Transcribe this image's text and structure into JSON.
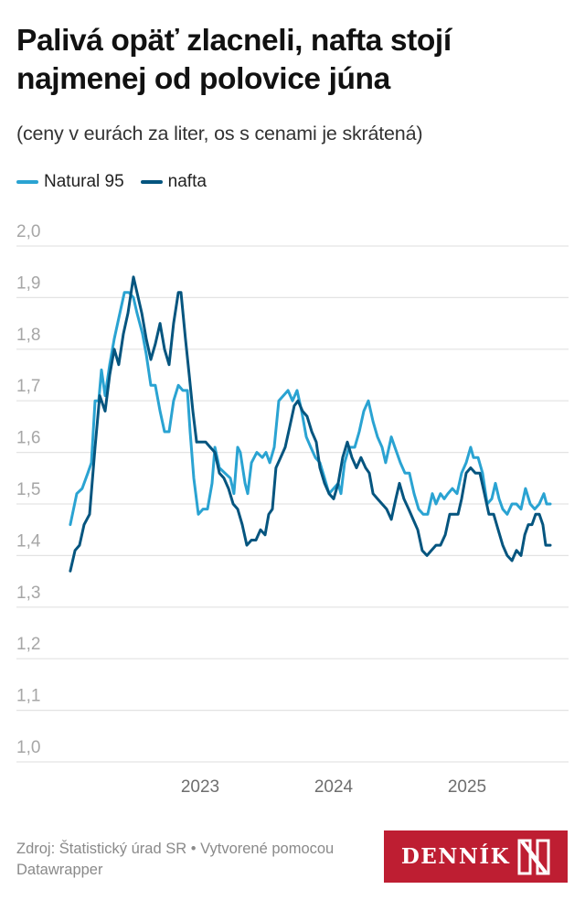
{
  "header": {
    "title": "Palivá opäť zlacneli, nafta stojí najmenej od polovice júna",
    "subtitle": "(ceny v eurách za liter, os s cenami je skrátená)"
  },
  "legend": [
    {
      "label": "Natural 95",
      "color": "#2aa3d2"
    },
    {
      "label": "nafta",
      "color": "#05557f"
    }
  ],
  "footer": {
    "source": "Zdroj: Štatistický úrad SR • Vytvorené pomocou Datawrapper",
    "logo_text": "DENNÍK",
    "logo_mark": "N",
    "logo_color": "#be1e32"
  },
  "chart_data": {
    "type": "line",
    "title": "Palivá opäť zlacneli, nafta stojí najmenej od polovice júna",
    "subtitle": "(ceny v eurách za liter, os s cenami je skrátená)",
    "xlabel": "",
    "ylabel": "",
    "x_unit": "decimal year",
    "xlim": [
      2022.0,
      2025.75
    ],
    "ylim": [
      1.0,
      2.0
    ],
    "yticks": [
      1.0,
      1.1,
      1.2,
      1.3,
      1.4,
      1.5,
      1.6,
      1.7,
      1.8,
      1.9,
      2.0
    ],
    "ytick_labels": [
      "1,0",
      "1,1",
      "1,2",
      "1,3",
      "1,4",
      "1,5",
      "1,6",
      "1,7",
      "1,8",
      "1,9",
      "2,0"
    ],
    "xticks": [
      2023,
      2024,
      2025
    ],
    "xtick_labels": [
      "2023",
      "2024",
      "2025"
    ],
    "grid": "horizontal",
    "legend_position": "top-left",
    "series": [
      {
        "name": "Natural 95",
        "color": "#2aa3d2",
        "points": [
          [
            2022.027,
            1.46
          ],
          [
            2022.075,
            1.52
          ],
          [
            2022.116,
            1.53
          ],
          [
            2022.158,
            1.56
          ],
          [
            2022.185,
            1.58
          ],
          [
            2022.212,
            1.7
          ],
          [
            2022.24,
            1.7
          ],
          [
            2022.26,
            1.76
          ],
          [
            2022.288,
            1.71
          ],
          [
            2022.322,
            1.77
          ],
          [
            2022.356,
            1.82
          ],
          [
            2022.39,
            1.86
          ],
          [
            2022.432,
            1.91
          ],
          [
            2022.466,
            1.91
          ],
          [
            2022.5,
            1.9
          ],
          [
            2022.527,
            1.87
          ],
          [
            2022.568,
            1.83
          ],
          [
            2022.596,
            1.79
          ],
          [
            2022.63,
            1.73
          ],
          [
            2022.664,
            1.73
          ],
          [
            2022.699,
            1.68
          ],
          [
            2022.733,
            1.64
          ],
          [
            2022.767,
            1.64
          ],
          [
            2022.801,
            1.7
          ],
          [
            2022.836,
            1.73
          ],
          [
            2022.87,
            1.72
          ],
          [
            2022.904,
            1.72
          ],
          [
            2022.925,
            1.64
          ],
          [
            2022.952,
            1.55
          ],
          [
            2022.986,
            1.48
          ],
          [
            2023.021,
            1.49
          ],
          [
            2023.055,
            1.49
          ],
          [
            2023.089,
            1.54
          ],
          [
            2023.11,
            1.61
          ],
          [
            2023.144,
            1.57
          ],
          [
            2023.185,
            1.56
          ],
          [
            2023.226,
            1.55
          ],
          [
            2023.253,
            1.52
          ],
          [
            2023.281,
            1.61
          ],
          [
            2023.301,
            1.6
          ],
          [
            2023.336,
            1.54
          ],
          [
            2023.356,
            1.52
          ],
          [
            2023.384,
            1.58
          ],
          [
            2023.425,
            1.6
          ],
          [
            2023.466,
            1.59
          ],
          [
            2023.493,
            1.6
          ],
          [
            2023.521,
            1.58
          ],
          [
            2023.555,
            1.61
          ],
          [
            2023.589,
            1.7
          ],
          [
            2023.623,
            1.71
          ],
          [
            2023.658,
            1.72
          ],
          [
            2023.692,
            1.7
          ],
          [
            2023.726,
            1.72
          ],
          [
            2023.76,
            1.68
          ],
          [
            2023.795,
            1.63
          ],
          [
            2023.829,
            1.61
          ],
          [
            2023.863,
            1.59
          ],
          [
            2023.897,
            1.58
          ],
          [
            2023.932,
            1.55
          ],
          [
            2023.966,
            1.52
          ],
          [
            2024.0,
            1.53
          ],
          [
            2024.034,
            1.54
          ],
          [
            2024.055,
            1.52
          ],
          [
            2024.082,
            1.58
          ],
          [
            2024.116,
            1.61
          ],
          [
            2024.158,
            1.61
          ],
          [
            2024.192,
            1.64
          ],
          [
            2024.226,
            1.68
          ],
          [
            2024.26,
            1.7
          ],
          [
            2024.295,
            1.66
          ],
          [
            2024.329,
            1.63
          ],
          [
            2024.363,
            1.61
          ],
          [
            2024.39,
            1.58
          ],
          [
            2024.432,
            1.63
          ],
          [
            2024.459,
            1.61
          ],
          [
            2024.5,
            1.58
          ],
          [
            2024.534,
            1.56
          ],
          [
            2024.568,
            1.56
          ],
          [
            2024.603,
            1.52
          ],
          [
            2024.637,
            1.49
          ],
          [
            2024.671,
            1.48
          ],
          [
            2024.705,
            1.48
          ],
          [
            2024.74,
            1.52
          ],
          [
            2024.767,
            1.5
          ],
          [
            2024.801,
            1.52
          ],
          [
            2024.829,
            1.51
          ],
          [
            2024.856,
            1.52
          ],
          [
            2024.89,
            1.53
          ],
          [
            2024.925,
            1.52
          ],
          [
            2024.959,
            1.56
          ],
          [
            2024.993,
            1.58
          ],
          [
            2025.027,
            1.61
          ],
          [
            2025.048,
            1.59
          ],
          [
            2025.082,
            1.59
          ],
          [
            2025.116,
            1.56
          ],
          [
            2025.151,
            1.5
          ],
          [
            2025.185,
            1.51
          ],
          [
            2025.212,
            1.54
          ],
          [
            2025.24,
            1.51
          ],
          [
            2025.267,
            1.49
          ],
          [
            2025.301,
            1.48
          ],
          [
            2025.336,
            1.5
          ],
          [
            2025.37,
            1.5
          ],
          [
            2025.404,
            1.49
          ],
          [
            2025.438,
            1.53
          ],
          [
            2025.473,
            1.5
          ],
          [
            2025.507,
            1.49
          ],
          [
            2025.541,
            1.5
          ],
          [
            2025.575,
            1.52
          ],
          [
            2025.596,
            1.5
          ],
          [
            2025.623,
            1.5
          ]
        ]
      },
      {
        "name": "nafta",
        "color": "#05557f",
        "points": [
          [
            2022.027,
            1.37
          ],
          [
            2022.062,
            1.41
          ],
          [
            2022.096,
            1.42
          ],
          [
            2022.13,
            1.46
          ],
          [
            2022.171,
            1.48
          ],
          [
            2022.212,
            1.61
          ],
          [
            2022.247,
            1.71
          ],
          [
            2022.288,
            1.68
          ],
          [
            2022.322,
            1.75
          ],
          [
            2022.356,
            1.8
          ],
          [
            2022.39,
            1.77
          ],
          [
            2022.425,
            1.83
          ],
          [
            2022.459,
            1.87
          ],
          [
            2022.5,
            1.94
          ],
          [
            2022.527,
            1.91
          ],
          [
            2022.562,
            1.87
          ],
          [
            2022.596,
            1.82
          ],
          [
            2022.63,
            1.78
          ],
          [
            2022.664,
            1.81
          ],
          [
            2022.699,
            1.85
          ],
          [
            2022.733,
            1.8
          ],
          [
            2022.767,
            1.77
          ],
          [
            2022.801,
            1.85
          ],
          [
            2022.836,
            1.91
          ],
          [
            2022.856,
            1.91
          ],
          [
            2022.89,
            1.82
          ],
          [
            2022.918,
            1.75
          ],
          [
            2022.945,
            1.68
          ],
          [
            2022.973,
            1.62
          ],
          [
            2023.007,
            1.62
          ],
          [
            2023.041,
            1.62
          ],
          [
            2023.075,
            1.61
          ],
          [
            2023.11,
            1.6
          ],
          [
            2023.144,
            1.56
          ],
          [
            2023.178,
            1.55
          ],
          [
            2023.212,
            1.53
          ],
          [
            2023.247,
            1.5
          ],
          [
            2023.281,
            1.49
          ],
          [
            2023.315,
            1.46
          ],
          [
            2023.349,
            1.42
          ],
          [
            2023.384,
            1.43
          ],
          [
            2023.418,
            1.43
          ],
          [
            2023.452,
            1.45
          ],
          [
            2023.486,
            1.44
          ],
          [
            2023.514,
            1.48
          ],
          [
            2023.541,
            1.49
          ],
          [
            2023.568,
            1.57
          ],
          [
            2023.603,
            1.59
          ],
          [
            2023.637,
            1.61
          ],
          [
            2023.671,
            1.65
          ],
          [
            2023.705,
            1.69
          ],
          [
            2023.733,
            1.7
          ],
          [
            2023.767,
            1.68
          ],
          [
            2023.801,
            1.67
          ],
          [
            2023.836,
            1.64
          ],
          [
            2023.87,
            1.62
          ],
          [
            2023.897,
            1.57
          ],
          [
            2023.932,
            1.54
          ],
          [
            2023.966,
            1.52
          ],
          [
            2024.0,
            1.51
          ],
          [
            2024.034,
            1.54
          ],
          [
            2024.068,
            1.59
          ],
          [
            2024.103,
            1.62
          ],
          [
            2024.137,
            1.59
          ],
          [
            2024.171,
            1.57
          ],
          [
            2024.205,
            1.59
          ],
          [
            2024.24,
            1.57
          ],
          [
            2024.267,
            1.56
          ],
          [
            2024.295,
            1.52
          ],
          [
            2024.329,
            1.51
          ],
          [
            2024.363,
            1.5
          ],
          [
            2024.397,
            1.49
          ],
          [
            2024.432,
            1.47
          ],
          [
            2024.466,
            1.51
          ],
          [
            2024.493,
            1.54
          ],
          [
            2024.527,
            1.51
          ],
          [
            2024.562,
            1.49
          ],
          [
            2024.596,
            1.47
          ],
          [
            2024.63,
            1.45
          ],
          [
            2024.664,
            1.41
          ],
          [
            2024.699,
            1.4
          ],
          [
            2024.733,
            1.41
          ],
          [
            2024.767,
            1.42
          ],
          [
            2024.801,
            1.42
          ],
          [
            2024.836,
            1.44
          ],
          [
            2024.87,
            1.48
          ],
          [
            2024.904,
            1.48
          ],
          [
            2024.932,
            1.48
          ],
          [
            2024.959,
            1.51
          ],
          [
            2024.993,
            1.56
          ],
          [
            2025.027,
            1.57
          ],
          [
            2025.062,
            1.56
          ],
          [
            2025.096,
            1.56
          ],
          [
            2025.13,
            1.52
          ],
          [
            2025.164,
            1.48
          ],
          [
            2025.199,
            1.48
          ],
          [
            2025.233,
            1.45
          ],
          [
            2025.267,
            1.42
          ],
          [
            2025.301,
            1.4
          ],
          [
            2025.336,
            1.39
          ],
          [
            2025.37,
            1.41
          ],
          [
            2025.404,
            1.4
          ],
          [
            2025.432,
            1.44
          ],
          [
            2025.459,
            1.46
          ],
          [
            2025.486,
            1.46
          ],
          [
            2025.514,
            1.48
          ],
          [
            2025.541,
            1.48
          ],
          [
            2025.568,
            1.46
          ],
          [
            2025.589,
            1.42
          ],
          [
            2025.623,
            1.42
          ]
        ]
      }
    ]
  }
}
